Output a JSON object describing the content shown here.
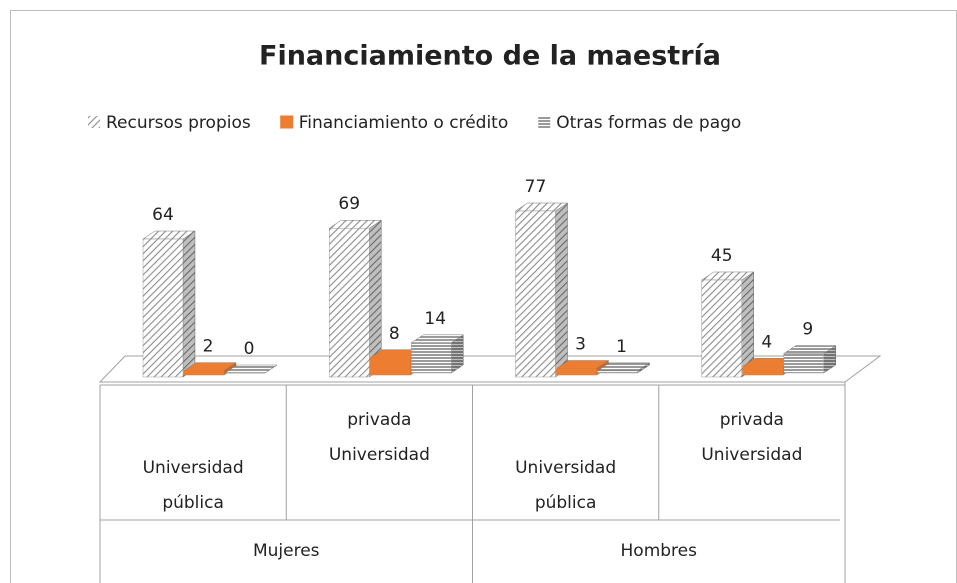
{
  "chart_data": {
    "type": "bar3d",
    "title": "Financiamiento de la maestría",
    "categories": [
      [
        "Universidad",
        "pública"
      ],
      [
        "privada",
        "Universidad"
      ],
      [
        "Universidad",
        "pública"
      ],
      [
        "privada",
        "Universidad"
      ]
    ],
    "groups": [
      "Mujeres",
      "Hombres"
    ],
    "series": [
      {
        "name": "Recursos propios",
        "color": "#9a9a9a",
        "pattern": "diagonal",
        "values": [
          64,
          69,
          77,
          45
        ]
      },
      {
        "name": "Financiamiento o crédito",
        "color": "#ed7d31",
        "values": [
          2,
          8,
          3,
          4
        ]
      },
      {
        "name": "Otras formas de pago",
        "color": "#6f6f6f",
        "pattern": "horizontal",
        "values": [
          0,
          14,
          1,
          9
        ]
      }
    ],
    "legend": "top"
  }
}
